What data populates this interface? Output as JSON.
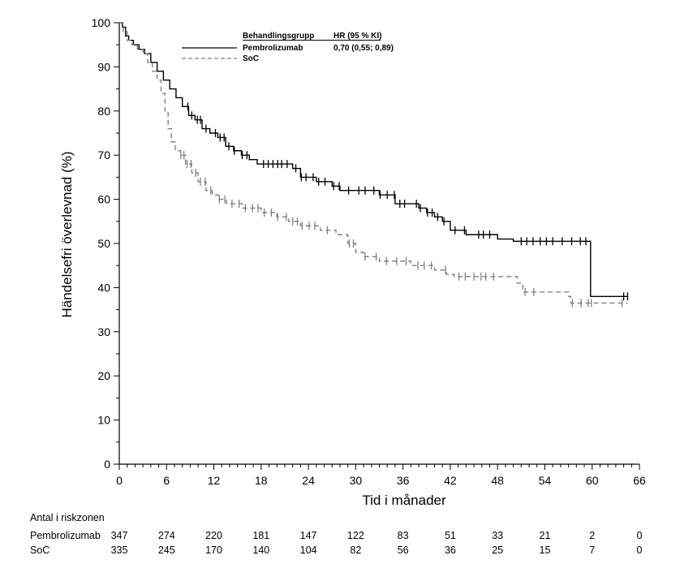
{
  "chart_data": {
    "type": "line",
    "title": "",
    "xlabel": "Tid i månader",
    "ylabel": "Händelsefri överlevnad (%)",
    "xlim": [
      0,
      66
    ],
    "ylim": [
      0,
      100
    ],
    "x_ticks": [
      0,
      6,
      12,
      18,
      24,
      30,
      36,
      42,
      48,
      54,
      60,
      66
    ],
    "y_ticks": [
      0,
      10,
      20,
      30,
      40,
      50,
      60,
      70,
      80,
      90,
      100
    ],
    "grid": false,
    "legend": {
      "placement": "top-center",
      "header_group": "Behandlingsgrupp",
      "header_hr": "HR (95 % KI)"
    },
    "series": [
      {
        "name": "Pembrolizumab",
        "hr_text": "0,70 (0,55; 0,89)",
        "color": "#000000",
        "style": "solid",
        "step_points": [
          [
            0,
            100
          ],
          [
            0.4,
            99
          ],
          [
            0.8,
            97
          ],
          [
            1.2,
            96
          ],
          [
            1.8,
            95
          ],
          [
            2.5,
            94
          ],
          [
            3.2,
            93
          ],
          [
            4,
            91
          ],
          [
            4.8,
            89
          ],
          [
            5.6,
            87
          ],
          [
            6.4,
            85
          ],
          [
            7.2,
            83
          ],
          [
            8,
            81
          ],
          [
            8.8,
            79
          ],
          [
            9.6,
            78
          ],
          [
            10.5,
            76
          ],
          [
            11.5,
            75
          ],
          [
            12.5,
            74
          ],
          [
            13.5,
            72
          ],
          [
            14.5,
            71
          ],
          [
            15.5,
            70
          ],
          [
            16.5,
            69
          ],
          [
            17.5,
            68
          ],
          [
            20,
            68
          ],
          [
            22,
            67
          ],
          [
            23,
            65
          ],
          [
            25,
            64
          ],
          [
            27,
            63
          ],
          [
            28,
            62
          ],
          [
            33,
            61
          ],
          [
            35,
            59
          ],
          [
            38,
            58
          ],
          [
            39,
            57
          ],
          [
            40,
            56
          ],
          [
            41,
            55
          ],
          [
            42,
            53
          ],
          [
            44,
            52
          ],
          [
            45,
            52
          ],
          [
            48,
            51
          ],
          [
            50,
            50.5
          ],
          [
            59.8,
            50.5
          ],
          [
            59.8,
            38
          ],
          [
            64,
            38
          ],
          [
            64.5,
            38
          ]
        ],
        "censor_times": [
          8.7,
          9.2,
          9.9,
          10.3,
          11,
          12.2,
          12.8,
          13.3,
          13.9,
          14.6,
          15.6,
          16.2,
          18.3,
          18.9,
          19.5,
          20.1,
          20.6,
          21.3,
          22.4,
          23.1,
          23.7,
          24.6,
          25.3,
          26.1,
          27.2,
          27.9,
          29.1,
          30.4,
          31.2,
          32.3,
          33.1,
          34,
          34.9,
          35.6,
          36.2,
          37.7,
          38.2,
          39.1,
          39.7,
          40.4,
          41.2,
          42.6,
          43.8,
          45.6,
          46.2,
          47,
          51,
          51.7,
          52.5,
          53.4,
          54.2,
          55,
          56.2,
          57.4,
          58.5,
          59.2,
          64,
          64.5
        ],
        "at_risk": [
          347,
          274,
          220,
          181,
          147,
          122,
          83,
          51,
          33,
          21,
          2,
          0
        ]
      },
      {
        "name": "SoC",
        "color": "#808080",
        "style": "dashed",
        "step_points": [
          [
            0,
            100
          ],
          [
            0.5,
            98
          ],
          [
            1,
            96
          ],
          [
            1.6,
            95
          ],
          [
            2.3,
            94
          ],
          [
            3,
            93
          ],
          [
            3.6,
            91
          ],
          [
            4.2,
            89
          ],
          [
            4.8,
            87
          ],
          [
            5.3,
            84
          ],
          [
            5.8,
            80
          ],
          [
            6.2,
            76
          ],
          [
            6.6,
            73
          ],
          [
            7.1,
            71
          ],
          [
            7.8,
            70
          ],
          [
            8.4,
            68
          ],
          [
            9.2,
            66
          ],
          [
            10,
            64
          ],
          [
            11,
            62
          ],
          [
            11.8,
            61
          ],
          [
            12.6,
            60
          ],
          [
            13.6,
            59
          ],
          [
            15.6,
            58
          ],
          [
            18,
            57
          ],
          [
            20,
            56
          ],
          [
            21.5,
            55
          ],
          [
            23,
            54
          ],
          [
            25.5,
            53
          ],
          [
            27.5,
            52
          ],
          [
            29,
            50
          ],
          [
            30,
            48
          ],
          [
            31,
            47
          ],
          [
            33,
            46
          ],
          [
            37,
            45
          ],
          [
            40,
            44
          ],
          [
            41.5,
            43
          ],
          [
            42.5,
            42.5
          ],
          [
            49,
            42.5
          ],
          [
            50.5,
            41
          ],
          [
            51.2,
            39
          ],
          [
            53,
            39
          ],
          [
            57,
            38
          ],
          [
            57.3,
            36.5
          ],
          [
            64.5,
            36.5
          ]
        ],
        "censor_times": [
          7.8,
          8.2,
          8.6,
          9.1,
          9.7,
          10.3,
          10.9,
          11.6,
          12.7,
          13.4,
          14.3,
          15.2,
          16,
          16.9,
          17.6,
          18.4,
          19.3,
          20.1,
          21.2,
          22,
          22.6,
          23.2,
          24.1,
          24.8,
          26.4,
          29.2,
          29.7,
          31.2,
          32.6,
          33.9,
          35.2,
          36.4,
          37.9,
          38.7,
          39.6,
          41.4,
          43.1,
          43.9,
          45,
          45.9,
          46.5,
          47.5,
          51.5,
          52.6,
          57.5,
          58.6,
          59.5,
          59.9,
          63.8
        ]
      }
    ]
  },
  "risk_table": {
    "title": "Antal i riskzonen",
    "rows": [
      {
        "label": "Pembrolizumab",
        "values": [
          "347",
          "274",
          "220",
          "181",
          "147",
          "122",
          "83",
          "51",
          "33",
          "21",
          "2",
          "0"
        ]
      },
      {
        "label": "SoC",
        "values": [
          "335",
          "245",
          "170",
          "140",
          "104",
          "82",
          "56",
          "36",
          "25",
          "15",
          "7",
          "0"
        ]
      }
    ]
  }
}
